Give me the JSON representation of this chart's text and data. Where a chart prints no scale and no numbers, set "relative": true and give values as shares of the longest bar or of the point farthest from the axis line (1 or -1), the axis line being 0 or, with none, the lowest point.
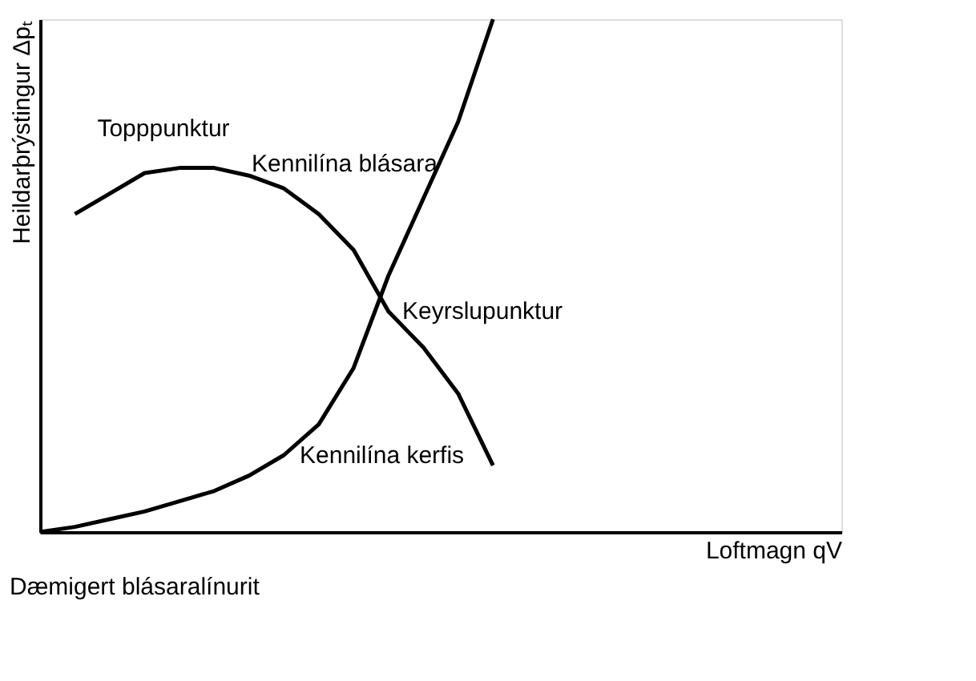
{
  "chart_data": {
    "type": "line",
    "relative": true,
    "xlabel": "Loftmagn qV",
    "ylabel": "Heildarþrýstingur Δpₜ",
    "tick_labels": false,
    "grid": false,
    "marker": "none",
    "line_style": "solid",
    "categories": [
      null,
      null,
      null,
      null,
      null,
      null,
      null,
      null,
      null,
      null,
      null,
      null,
      null,
      null,
      null,
      null,
      null,
      null,
      null,
      null,
      null,
      null,
      null,
      null
    ],
    "series": [
      {
        "color": "#000000",
        "values": [
          null,
          0.62,
          0.66,
          0.7,
          0.71,
          0.71,
          0.695,
          0.67,
          0.62,
          0.55,
          0.43,
          0.36,
          0.27,
          0.13,
          null,
          null,
          null,
          null,
          null,
          null,
          null,
          null,
          null,
          null
        ]
      },
      {
        "color": "#000000",
        "values": [
          0,
          0.01,
          0.025,
          0.04,
          0.06,
          0.08,
          0.11,
          0.15,
          0.21,
          0.32,
          0.5,
          0.65,
          0.8,
          1.0,
          null,
          null,
          null,
          null,
          null,
          null,
          null,
          null,
          null,
          null
        ]
      }
    ],
    "annotations": [
      "Topppunktur",
      "Kennilína blásara",
      "Keyrslupunktur",
      "Kennilína kerfis",
      "Dæmigert blásaralínurit"
    ]
  }
}
